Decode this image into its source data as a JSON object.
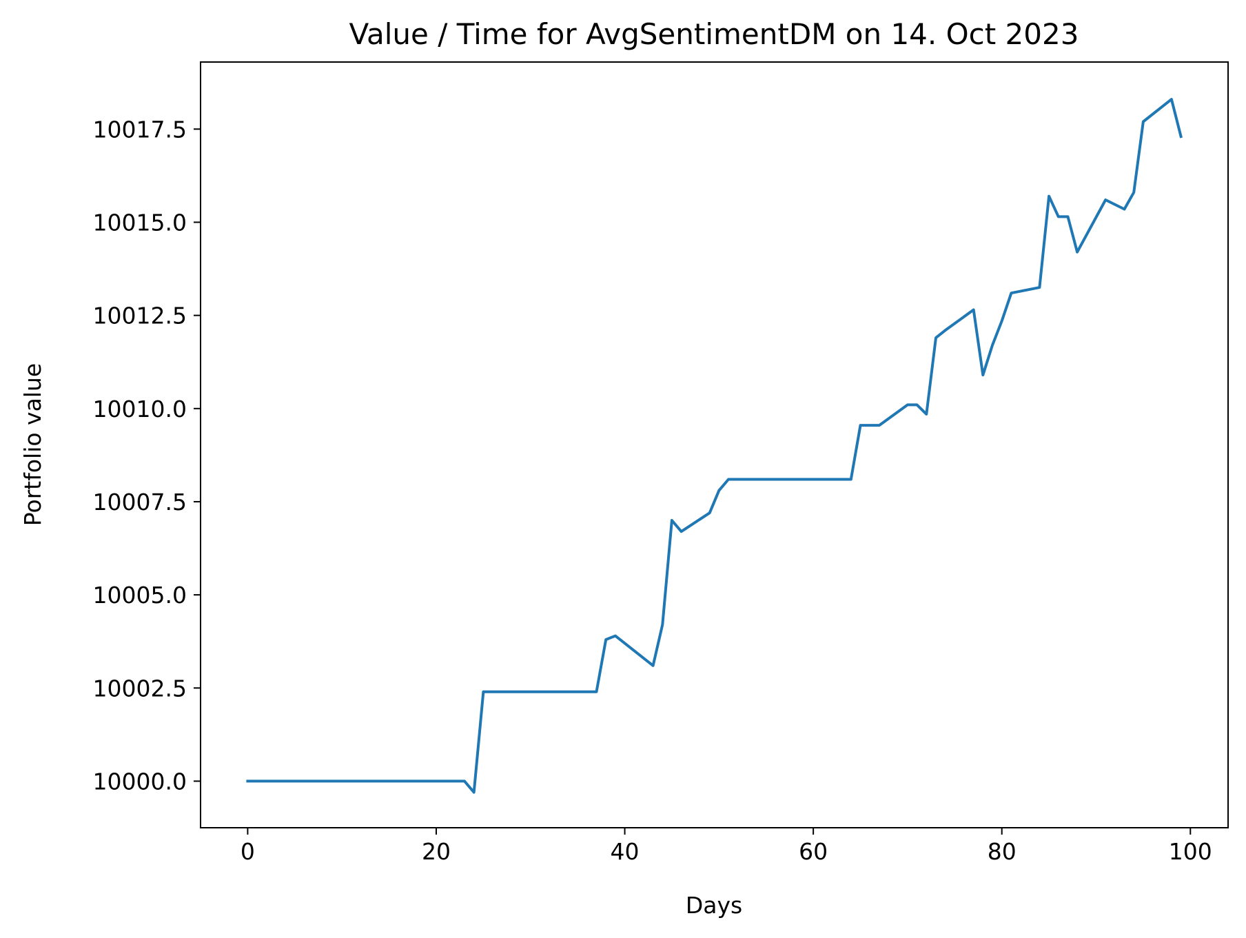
{
  "chart_data": {
    "type": "line",
    "title": "Value / Time for AvgSentimentDM on 14. Oct 2023",
    "xlabel": "Days",
    "ylabel": "Portfolio value",
    "xlim": [
      -5,
      104
    ],
    "ylim": [
      9998.75,
      10019.3
    ],
    "x_ticks": [
      0,
      20,
      40,
      60,
      80,
      100
    ],
    "x_tick_labels": [
      "0",
      "20",
      "40",
      "60",
      "80",
      "100"
    ],
    "y_ticks": [
      10000.0,
      10002.5,
      10005.0,
      10007.5,
      10010.0,
      10012.5,
      10015.0,
      10017.5
    ],
    "y_tick_labels": [
      "10000.0",
      "10002.5",
      "10005.0",
      "10007.5",
      "10010.0",
      "10012.5",
      "10015.0",
      "10017.5"
    ],
    "grid": false,
    "series": [
      {
        "color": "#1f77b4",
        "x": [
          0,
          23,
          24,
          25,
          37,
          38,
          39,
          43,
          44,
          45,
          46,
          49,
          50,
          51,
          64,
          65,
          67,
          70,
          71,
          72,
          73,
          74,
          77,
          78,
          79,
          80,
          81,
          84,
          85,
          86,
          87,
          88,
          91,
          93,
          94,
          95,
          98,
          99
        ],
        "y": [
          10000.0,
          10000.0,
          9999.7,
          10002.4,
          10002.4,
          10003.8,
          10003.9,
          10003.1,
          10004.2,
          10007.0,
          10006.7,
          10007.2,
          10007.8,
          10008.1,
          10008.1,
          10009.55,
          10009.55,
          10010.1,
          10010.1,
          10009.85,
          10011.9,
          10012.1,
          10012.65,
          10010.9,
          10011.7,
          10012.35,
          10013.1,
          10013.25,
          10015.7,
          10015.15,
          10015.15,
          10014.2,
          10015.6,
          10015.35,
          10015.8,
          10017.7,
          10018.3,
          10017.3
        ]
      }
    ]
  }
}
